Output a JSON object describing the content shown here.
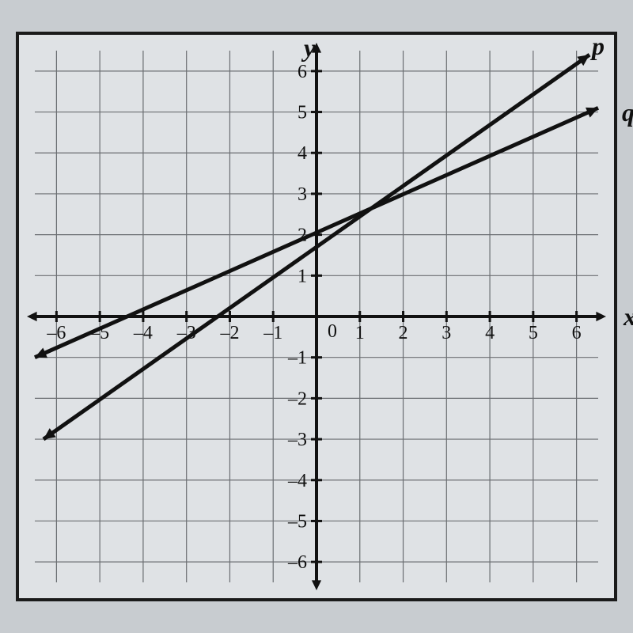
{
  "chart": {
    "type": "line",
    "background_color": "#dfe2e5",
    "border_color": "#1a1a1a",
    "grid_color": "#6b6e72",
    "axis_color": "#111111",
    "line_color": "#111111",
    "xlim": [
      -6.5,
      6.5
    ],
    "ylim": [
      -6.5,
      6.5
    ],
    "tick_step": 1,
    "x_axis_label": "x",
    "y_axis_label": "y",
    "tick_fontsize": 24,
    "label_fontsize": 32,
    "x_ticks": [
      -6,
      -5,
      -4,
      -3,
      -2,
      -1,
      1,
      2,
      3,
      4,
      5,
      6
    ],
    "y_ticks": [
      -6,
      -5,
      -4,
      -3,
      -2,
      -1,
      1,
      2,
      3,
      4,
      5,
      6
    ],
    "origin_label": "0",
    "lines": {
      "p": {
        "label": "p",
        "p1": {
          "x": -6.3,
          "y": -3
        },
        "p2": {
          "x": 6.3,
          "y": 6.4
        },
        "stroke_width": 5
      },
      "q": {
        "label": "q",
        "p1": {
          "x": -6.5,
          "y": -1
        },
        "p2": {
          "x": 6.5,
          "y": 5.1
        },
        "stroke_width": 5
      }
    },
    "arrow_size": 14
  }
}
